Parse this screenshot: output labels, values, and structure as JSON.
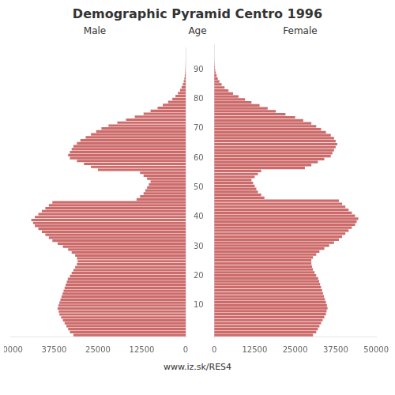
{
  "chart_data": {
    "type": "bar",
    "orientation": "horizontal",
    "title": "Demographic Pyramid Centro 1996",
    "y_label": "Age",
    "annotations": [
      "www.iz.sk/RES4"
    ],
    "categories": [
      null,
      null,
      null,
      null,
      null,
      null,
      null,
      null,
      null,
      null,
      "10",
      null,
      null,
      null,
      null,
      null,
      null,
      null,
      null,
      null,
      "20",
      null,
      null,
      null,
      null,
      null,
      null,
      null,
      null,
      null,
      "30",
      null,
      null,
      null,
      null,
      null,
      null,
      null,
      null,
      null,
      "40",
      null,
      null,
      null,
      null,
      null,
      null,
      null,
      null,
      null,
      "50",
      null,
      null,
      null,
      null,
      null,
      null,
      null,
      null,
      null,
      "60",
      null,
      null,
      null,
      null,
      null,
      null,
      null,
      null,
      null,
      "70",
      null,
      null,
      null,
      null,
      null,
      null,
      null,
      null,
      null,
      "80",
      null,
      null,
      null,
      null,
      null,
      null,
      null,
      null,
      null,
      "90",
      null,
      null,
      null,
      null,
      null,
      null,
      null
    ],
    "series": [
      {
        "name": "Male",
        "color": "#cd6b6b",
        "values": [
          32000,
          33000,
          33500,
          34000,
          34500,
          35000,
          35500,
          36000,
          36200,
          36500,
          36300,
          36000,
          35700,
          35400,
          35100,
          34800,
          34500,
          34200,
          33900,
          33600,
          33000,
          32500,
          32000,
          31500,
          31000,
          30800,
          31000,
          31500,
          32500,
          33500,
          35000,
          36500,
          38000,
          39000,
          40000,
          41000,
          42000,
          43000,
          43500,
          44000,
          43000,
          42000,
          41000,
          40000,
          39000,
          38000,
          14000,
          13000,
          12000,
          11500,
          11000,
          10500,
          10000,
          11000,
          12000,
          13000,
          25000,
          27000,
          29000,
          31000,
          33000,
          33500,
          33000,
          32500,
          32000,
          31000,
          30000,
          28500,
          27000,
          25500,
          24000,
          22000,
          19500,
          17000,
          14500,
          12000,
          10000,
          8000,
          6500,
          5000,
          3800,
          2900,
          2200,
          1600,
          1150,
          800,
          550,
          370,
          240,
          150,
          90,
          55,
          30,
          15,
          7,
          3,
          1,
          0
        ]
      },
      {
        "name": "Female",
        "color": "#cd6b6b",
        "values": [
          30500,
          31500,
          32000,
          32500,
          33000,
          33500,
          34000,
          34500,
          34700,
          35000,
          34800,
          34500,
          34200,
          33900,
          33600,
          33300,
          33000,
          32700,
          32400,
          32100,
          31500,
          31000,
          30500,
          30200,
          30000,
          30000,
          30500,
          31500,
          32500,
          34000,
          35500,
          37000,
          38500,
          39500,
          40500,
          41500,
          42500,
          43500,
          44000,
          44500,
          43500,
          42500,
          41500,
          40500,
          39500,
          38500,
          15500,
          14500,
          13500,
          13000,
          12500,
          12000,
          11500,
          12500,
          13500,
          14500,
          28000,
          30000,
          32000,
          34000,
          36000,
          36500,
          37000,
          37500,
          38000,
          37500,
          37000,
          36000,
          34500,
          33000,
          31500,
          30000,
          27500,
          25000,
          22000,
          19000,
          16500,
          14000,
          11500,
          9500,
          7500,
          5800,
          4400,
          3200,
          2300,
          1600,
          1100,
          730,
          470,
          290,
          170,
          95,
          50,
          25,
          11,
          5,
          2,
          0
        ]
      }
    ],
    "xlim": [
      0,
      50000
    ],
    "xticks": [
      0,
      12500,
      25000,
      37500,
      50000
    ],
    "grid": false
  }
}
